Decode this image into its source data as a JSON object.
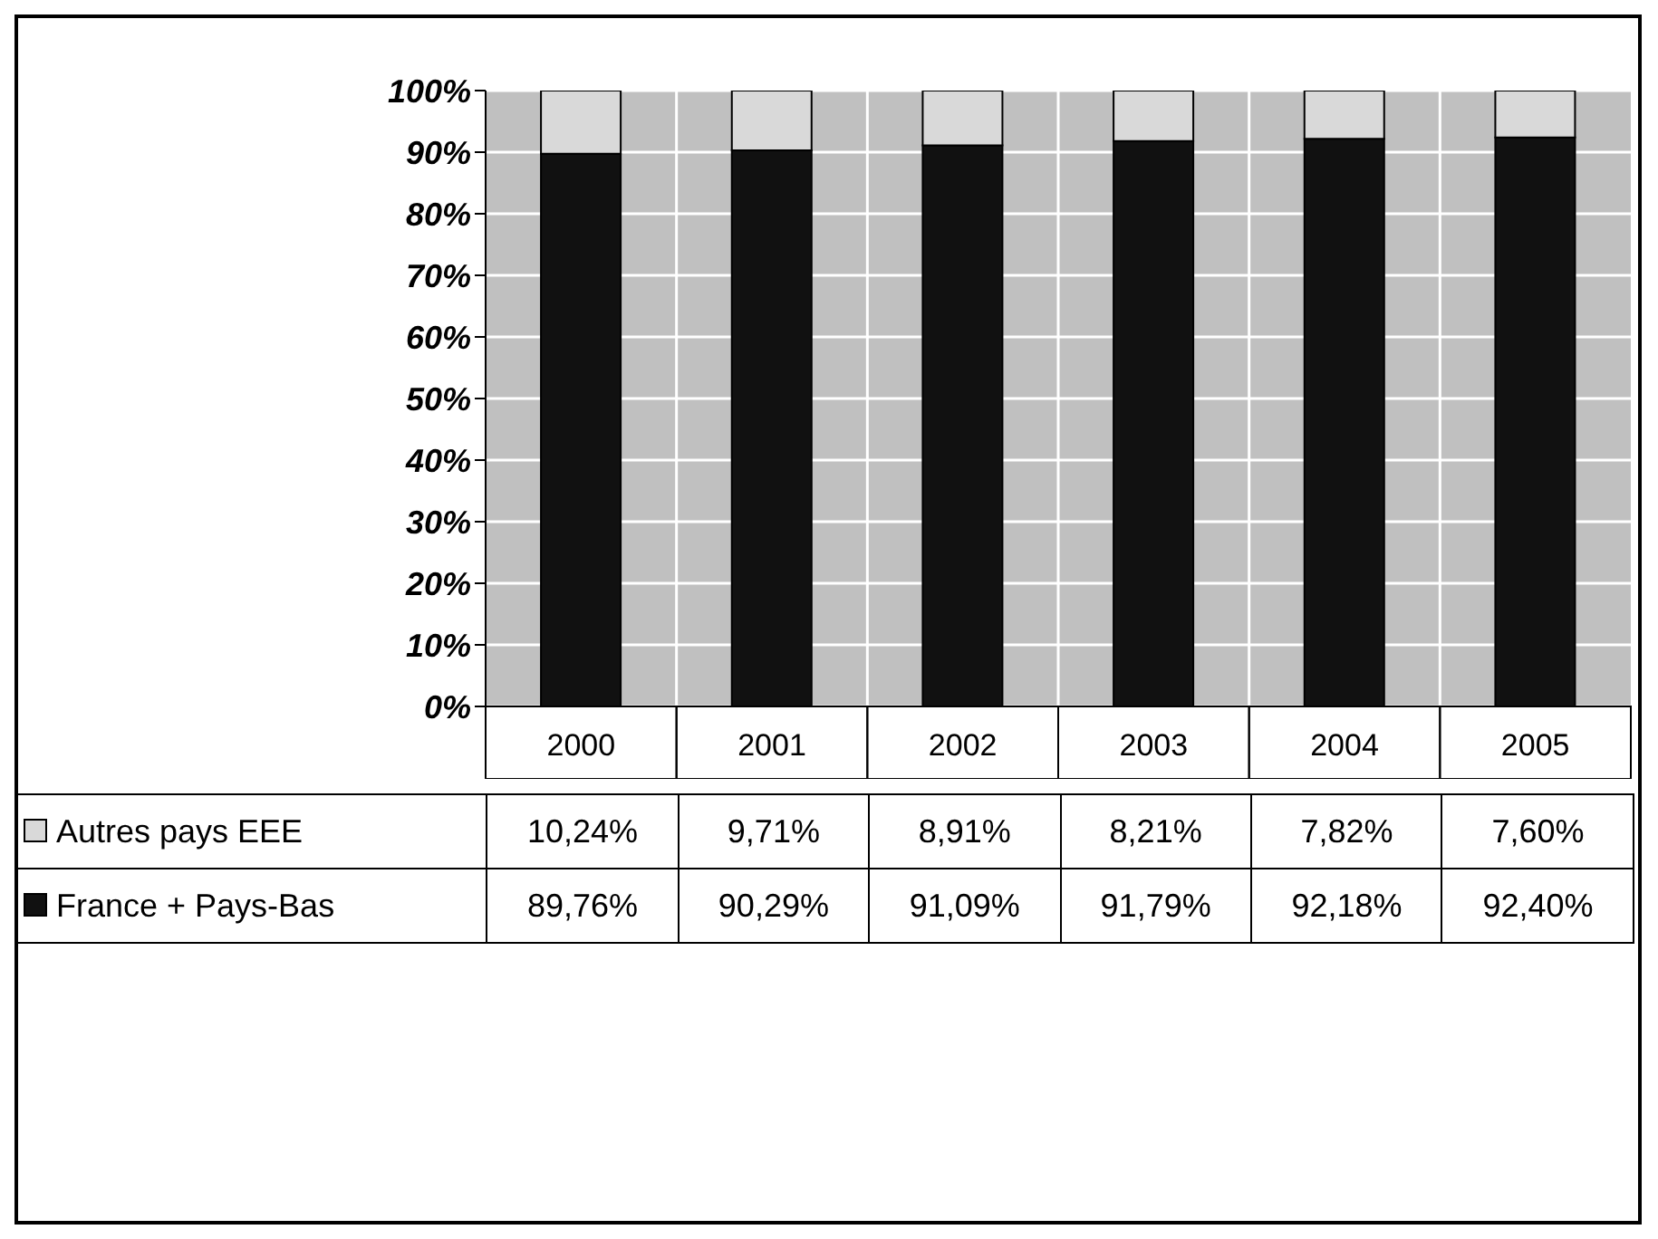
{
  "chart_data": {
    "type": "bar",
    "stacked": true,
    "categories": [
      "2000",
      "2001",
      "2002",
      "2003",
      "2004",
      "2005"
    ],
    "series": [
      {
        "name": "France + Pays-Bas",
        "color": "#111111",
        "values": [
          89.76,
          90.29,
          91.09,
          91.79,
          92.18,
          92.4
        ],
        "value_labels": [
          "89,76%",
          "90,29%",
          "91,09%",
          "91,79%",
          "92,18%",
          "92,40%"
        ]
      },
      {
        "name": "Autres pays EEE",
        "color": "#d9d9d9",
        "values": [
          10.24,
          9.71,
          8.91,
          8.21,
          7.82,
          7.6
        ],
        "value_labels": [
          "10,24%",
          "9,71%",
          "8,91%",
          "8,21%",
          "7,82%",
          "7,60%"
        ]
      }
    ],
    "ylim": [
      0,
      100
    ],
    "yticks": [
      {
        "value": 0,
        "label": "0%"
      },
      {
        "value": 10,
        "label": "10%"
      },
      {
        "value": 20,
        "label": "20%"
      },
      {
        "value": 30,
        "label": "30%"
      },
      {
        "value": 40,
        "label": "40%"
      },
      {
        "value": 50,
        "label": "50%"
      },
      {
        "value": 60,
        "label": "60%"
      },
      {
        "value": 70,
        "label": "70%"
      },
      {
        "value": 80,
        "label": "80%"
      },
      {
        "value": 90,
        "label": "90%"
      },
      {
        "value": 100,
        "label": "100%"
      }
    ],
    "grid": true,
    "legend": "bottom"
  }
}
